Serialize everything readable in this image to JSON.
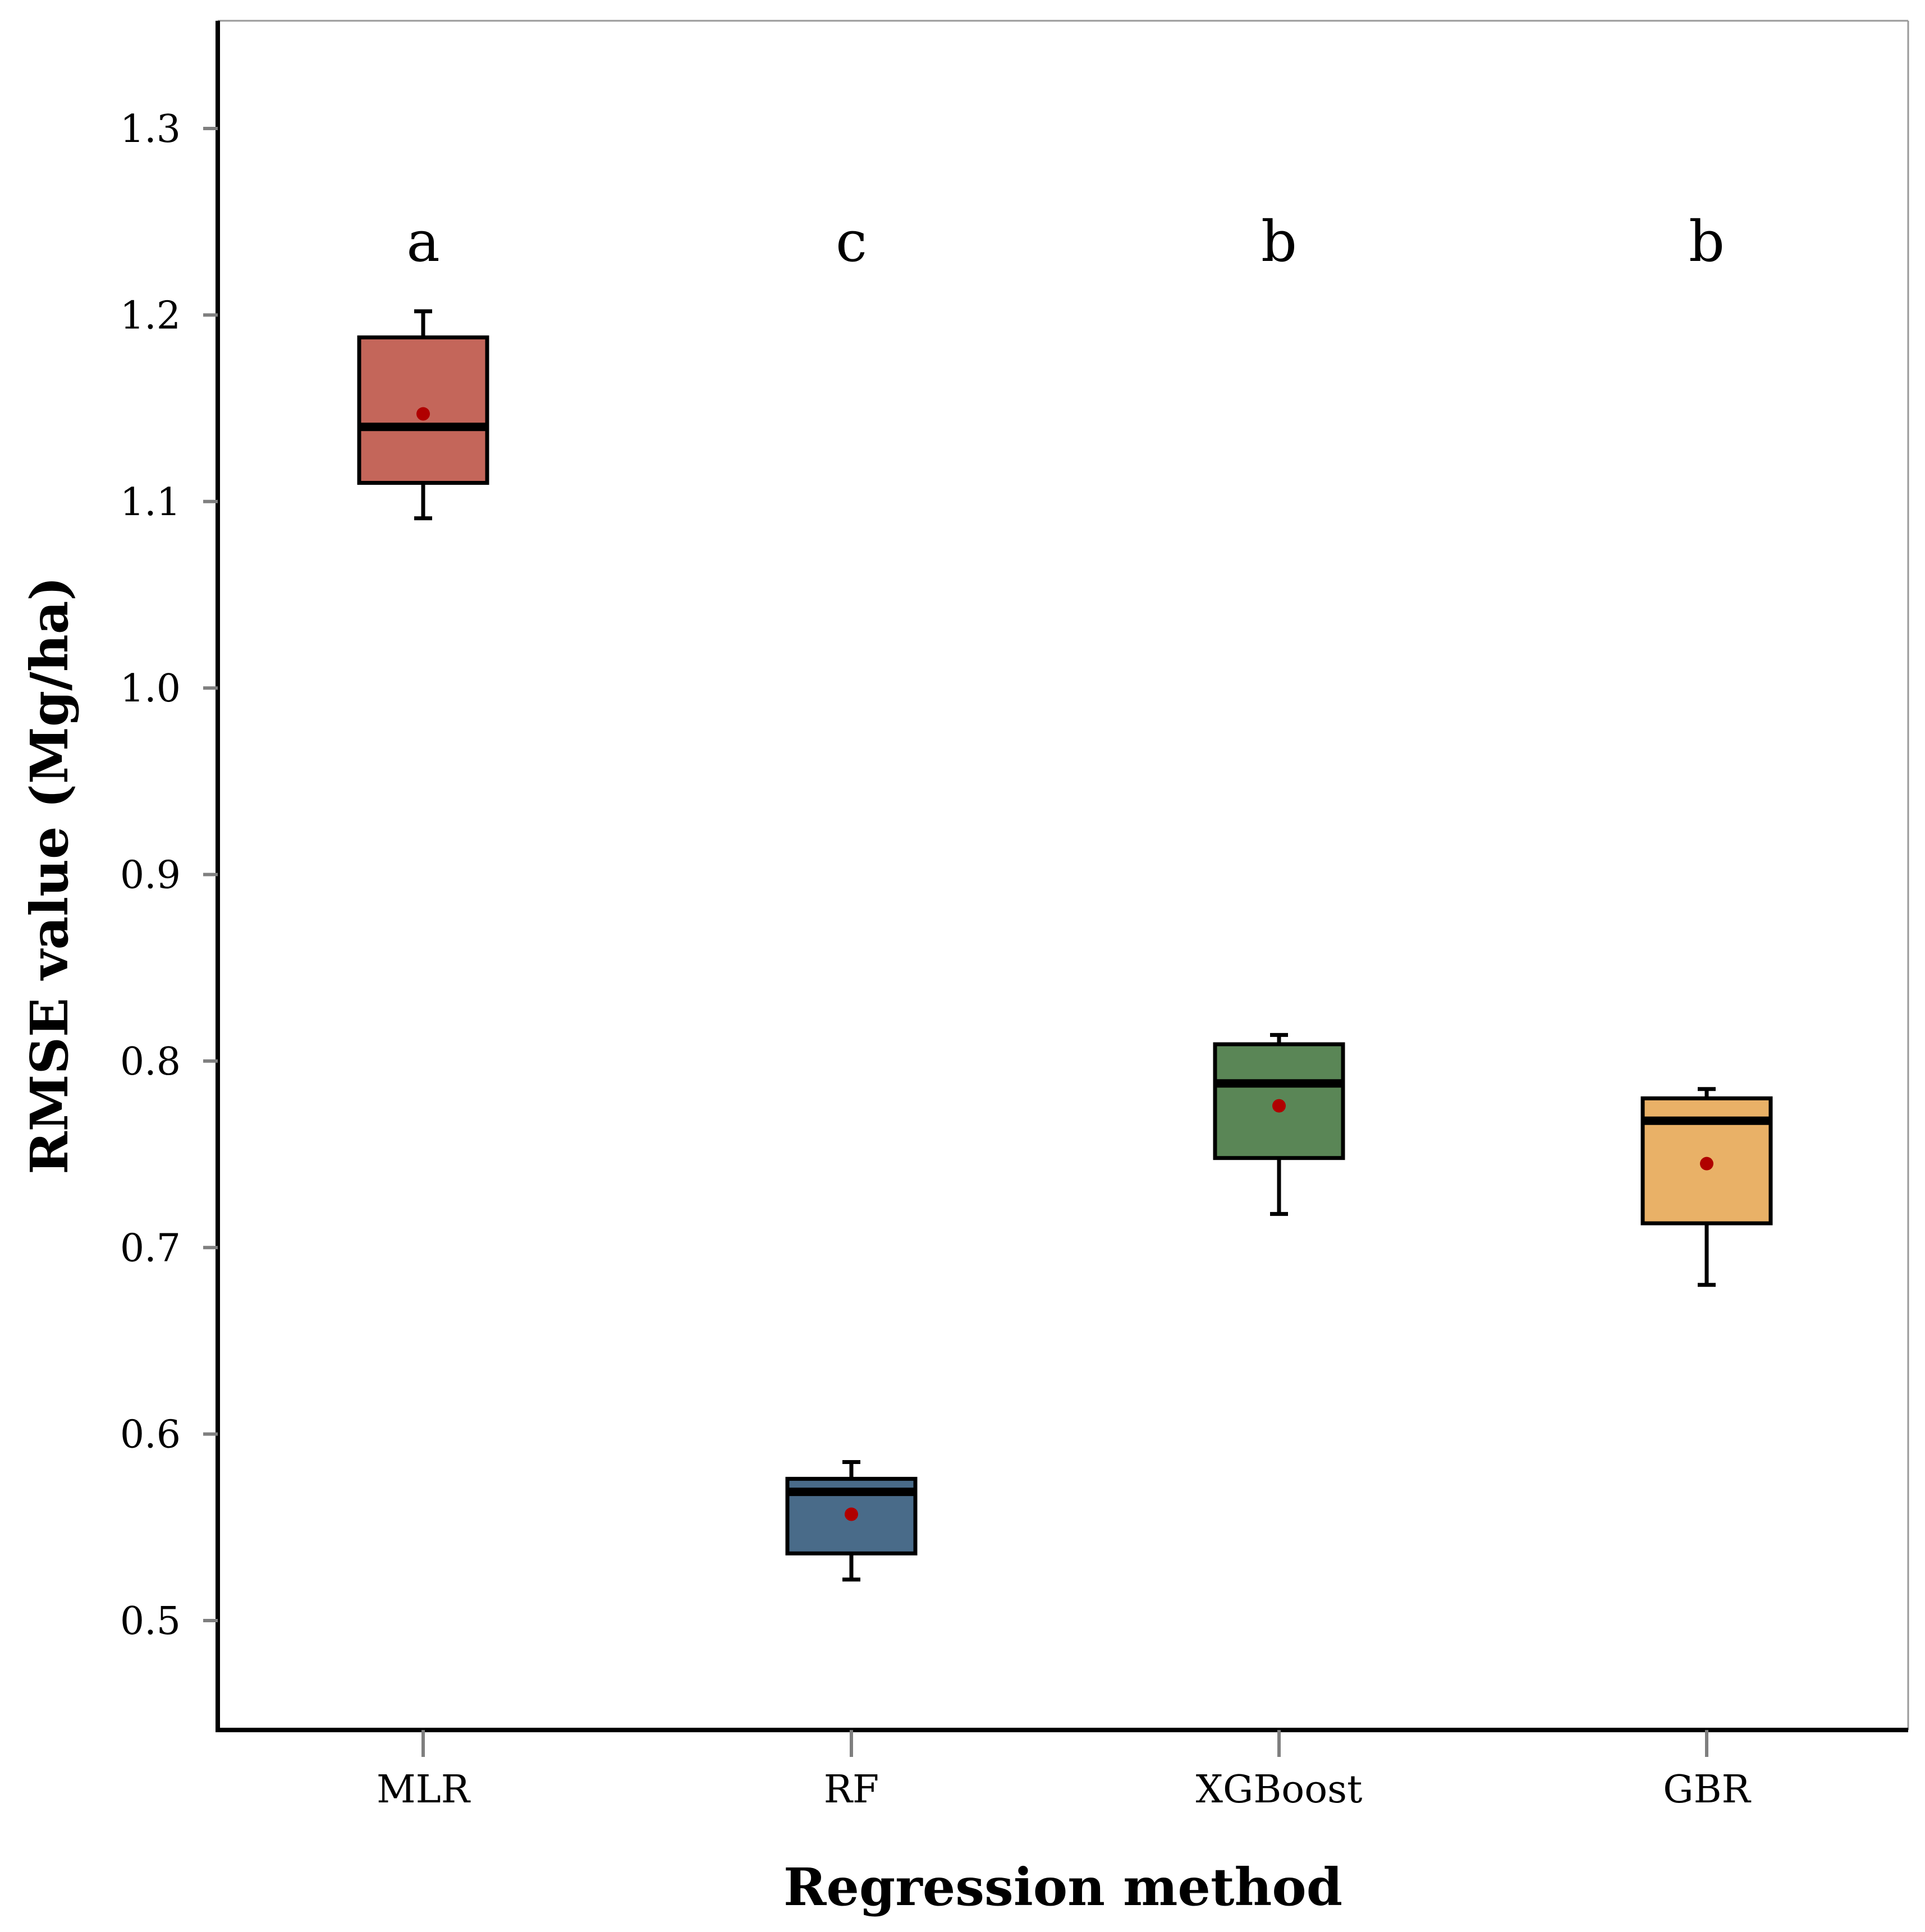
{
  "chart_data": {
    "type": "box",
    "title": "",
    "xlabel": "Regression method",
    "ylabel": "RMSE value (Mg/ha)",
    "ylim": [
      0.44,
      1.36
    ],
    "yticks": [
      "0.5",
      "0.6",
      "0.7",
      "0.8",
      "0.9",
      "1.0",
      "1.1",
      "1.2",
      "1.3"
    ],
    "ytick_values": [
      0.5,
      0.6,
      0.7,
      0.8,
      0.9,
      1.0,
      1.1,
      1.2,
      1.3
    ],
    "categories": [
      "MLR",
      "RF",
      "XGBoost",
      "GBR"
    ],
    "boxes": [
      {
        "name": "MLR",
        "whisker_low": 1.091,
        "q1": 1.11,
        "median": 1.14,
        "q3": 1.188,
        "whisker_high": 1.202,
        "mean": 1.147,
        "color": "#C4665A",
        "letter": "a"
      },
      {
        "name": "RF",
        "whisker_low": 0.522,
        "q1": 0.536,
        "median": 0.569,
        "q3": 0.576,
        "whisker_high": 0.585,
        "mean": 0.557,
        "color": "#496B89",
        "letter": "c"
      },
      {
        "name": "XGBoost",
        "whisker_low": 0.718,
        "q1": 0.748,
        "median": 0.788,
        "q3": 0.809,
        "whisker_high": 0.814,
        "mean": 0.776,
        "color": "#5A8656",
        "letter": "b"
      },
      {
        "name": "GBR",
        "whisker_low": 0.68,
        "q1": 0.713,
        "median": 0.768,
        "q3": 0.78,
        "whisker_high": 0.785,
        "mean": 0.745,
        "color": "#E9B167",
        "letter": "b"
      }
    ],
    "mean_marker_color": "#B00000",
    "grid": false,
    "legend": "none"
  }
}
